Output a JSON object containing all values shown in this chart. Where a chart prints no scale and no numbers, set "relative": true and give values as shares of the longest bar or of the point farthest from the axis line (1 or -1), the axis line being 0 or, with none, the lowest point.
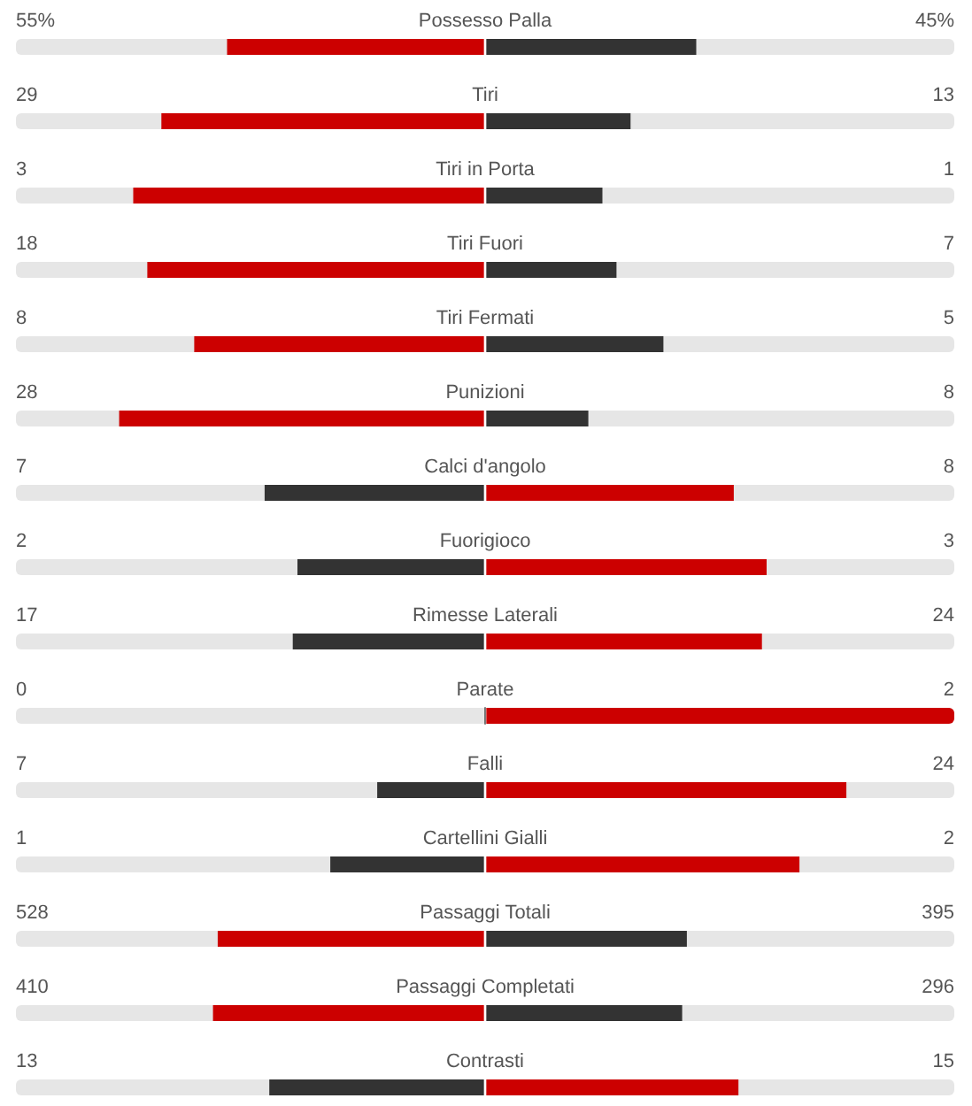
{
  "chart_data": {
    "type": "bar",
    "orientation": "horizontal",
    "stacked": true,
    "relative": true,
    "tick_labels": "y",
    "categories": [
      "Possesso Palla",
      "Tiri",
      "Tiri in Porta",
      "Tiri Fuori",
      "Tiri Fermati",
      "Punizioni",
      "Calci d'angolo",
      "Fuorigioco",
      "Rimesse Laterali",
      "Parate",
      "Falli",
      "Cartellini Gialli",
      "Passaggi Totali",
      "Passaggi Completati",
      "Contrasti"
    ],
    "series": [
      {
        "values": [
          -0.55,
          -0.69,
          -0.75,
          -0.72,
          -0.62,
          -0.78,
          -0.47,
          -0.4,
          -0.41,
          0,
          -0.23,
          -0.33,
          -0.57,
          -0.58,
          -0.46
        ],
        "colors": [
          "#cc0000",
          "#cc0000",
          "#cc0000",
          "#cc0000",
          "#cc0000",
          "#cc0000",
          "#333333",
          "#333333",
          "#333333",
          "#333333",
          "#333333",
          "#333333",
          "#cc0000",
          "#cc0000",
          "#333333"
        ]
      },
      {
        "values": [
          0.45,
          0.31,
          0.25,
          0.28,
          0.38,
          0.22,
          0.53,
          0.6,
          0.59,
          1,
          0.77,
          0.67,
          0.43,
          0.42,
          0.54
        ],
        "colors": [
          "#333333",
          "#333333",
          "#333333",
          "#333333",
          "#333333",
          "#333333",
          "#cc0000",
          "#cc0000",
          "#cc0000",
          "#cc0000",
          "#cc0000",
          "#cc0000",
          "#333333",
          "#333333",
          "#cc0000"
        ]
      }
    ],
    "annotations": [
      "55%",
      "45%",
      "29",
      "13",
      "3",
      "1",
      "18",
      "7",
      "8",
      "5",
      "28",
      "8",
      "7",
      "8",
      "2",
      "3",
      "17",
      "24",
      "0",
      "2",
      "7",
      "24",
      "1",
      "2",
      "528",
      "395",
      "410",
      "296",
      "13",
      "15"
    ]
  }
}
